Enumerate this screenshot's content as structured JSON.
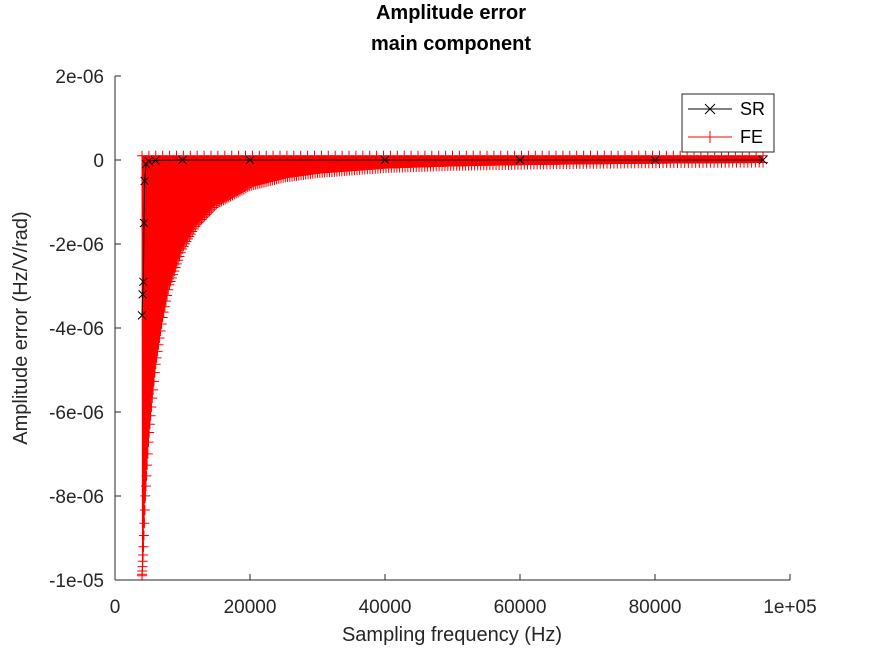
{
  "chart_data": {
    "type": "line",
    "title": [
      "Amplitude error",
      "main component"
    ],
    "xlabel": "Sampling frequency (Hz)",
    "ylabel": "Amplitude error (Hz/V/rad)",
    "xlim": [
      0,
      100000
    ],
    "ylim": [
      -1e-05,
      2e-06
    ],
    "x_ticks": [
      0,
      20000,
      40000,
      60000,
      80000,
      100000
    ],
    "x_tick_labels": [
      "0",
      "20000",
      "40000",
      "60000",
      "80000",
      "1e+05"
    ],
    "y_ticks": [
      2e-06,
      0,
      -2e-06,
      -4e-06,
      -6e-06,
      -8e-06,
      -1e-05
    ],
    "y_tick_labels": [
      "2e-06",
      "0",
      "-2e-06",
      "-4e-06",
      "-6e-06",
      "-8e-06",
      "-1e-05"
    ],
    "grid": false,
    "legend_position": "top-right",
    "series": [
      {
        "name": "SR",
        "color": "#000000",
        "marker": "x",
        "x": [
          4000,
          4100,
          4200,
          4300,
          4400,
          4600,
          5000,
          6000,
          10000,
          20000,
          40000,
          60000,
          80000,
          96000
        ],
        "y": [
          -3.7e-06,
          -3.2e-06,
          -2.9e-06,
          -1.5e-06,
          -5e-07,
          -1e-07,
          -3e-08,
          -1e-08,
          0,
          0,
          0,
          0,
          0,
          0
        ]
      },
      {
        "name": "FE",
        "color": "#ff0000",
        "marker": "+",
        "x": [
          4000,
          4200,
          4500,
          5000,
          5500,
          6000,
          7000,
          8000,
          10000,
          12000,
          15000,
          20000,
          25000,
          30000,
          40000,
          50000,
          60000,
          70000,
          80000,
          90000,
          96000
        ],
        "y": [
          -9.9e-06,
          -9.3e-06,
          -8e-06,
          -6.6e-06,
          -5.7e-06,
          -4.9e-06,
          -3.8e-06,
          -3e-06,
          -2.1e-06,
          -1.55e-06,
          -1.05e-06,
          -6.2e-07,
          -4.2e-07,
          -3.1e-07,
          -1.9e-07,
          -1.4e-07,
          -1.1e-07,
          -9e-08,
          -7.5e-08,
          -6.5e-08,
          -6e-08
        ],
        "y_upper": 1e-07
      }
    ]
  }
}
